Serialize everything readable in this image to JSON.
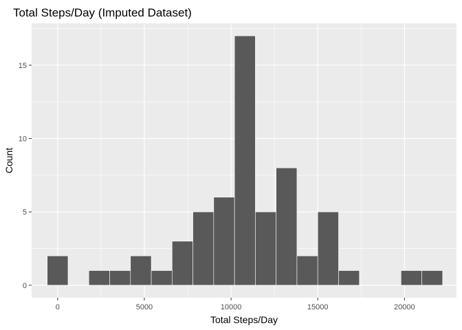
{
  "chart_data": {
    "type": "bar",
    "title": "Total Steps/Day (Imputed Dataset)",
    "xlabel": "Total Steps/Day",
    "ylabel": "Count",
    "xlim": [
      -1500,
      23000
    ],
    "ylim": [
      -0.85,
      17.85
    ],
    "x_ticks": [
      0,
      5000,
      10000,
      15000,
      20000
    ],
    "x_tick_labels": [
      "0",
      "5000",
      "10000",
      "15000",
      "20000"
    ],
    "y_ticks": [
      0,
      5,
      10,
      15
    ],
    "y_tick_labels": [
      "0",
      "5",
      "10",
      "15"
    ],
    "bin_width": 1200,
    "bin_centers": [
      0,
      2400,
      3600,
      4800,
      6000,
      7200,
      8400,
      9600,
      10800,
      12000,
      13200,
      14400,
      15600,
      16800,
      20400,
      21600
    ],
    "counts": [
      2,
      1,
      1,
      2,
      1,
      3,
      5,
      6,
      17,
      5,
      8,
      2,
      5,
      1,
      1,
      1
    ],
    "grid": true,
    "colors": {
      "panel": "#ebebeb",
      "grid": "#ffffff",
      "bar_fill": "#595959",
      "bar_outline": "#ffffff"
    }
  }
}
